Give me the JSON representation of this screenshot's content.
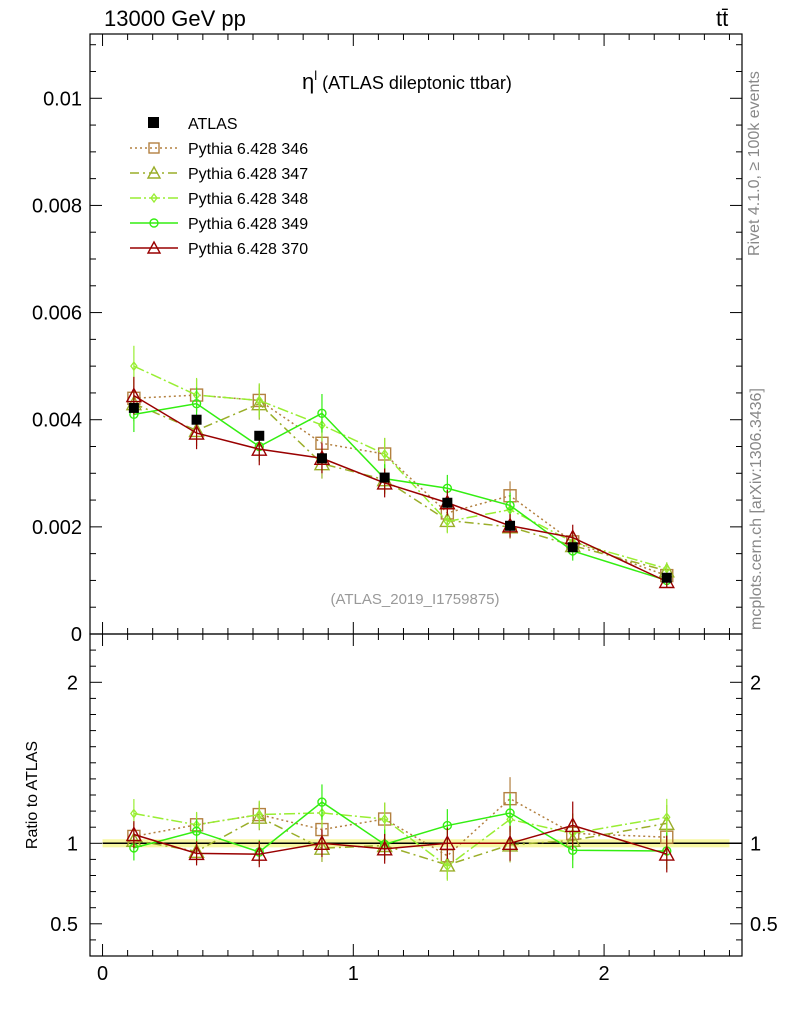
{
  "header": {
    "energy_label": "13000 GeV pp",
    "process_label": "tt̄"
  },
  "side": {
    "rivet_label": "Rivet 4.1.0, ≥ 100k events",
    "source_label": "mcplots.cern.ch [arXiv:1306.3436]"
  },
  "colors": {
    "atlas": "#000000",
    "p346": "#b38141",
    "p347": "#9aae29",
    "p348": "#99ee33",
    "p349": "#33ee11",
    "p370": "#990000",
    "band": "#f5f58a"
  },
  "chart_data": {
    "type": "scatter",
    "title": "η^l (ATLAS dileptonic ttbar)",
    "title_main": "η",
    "title_sup": "l",
    "title_rest": " (ATLAS dileptonic ttbar)",
    "analysis_id": "(ATLAS_2019_I1759875)",
    "xlim": [
      -0.05,
      2.55
    ],
    "upper": {
      "ylim": [
        0,
        0.0112
      ],
      "yticks": [
        0,
        0.002,
        0.004,
        0.006,
        0.008,
        0.01
      ],
      "ytick_labels": [
        "0",
        "0.002",
        "0.004",
        "0.006",
        "0.008",
        "0.01"
      ]
    },
    "lower": {
      "ylabel": "Ratio to ATLAS",
      "ylim": [
        0.3,
        2.3
      ],
      "yticks": [
        0.5,
        1,
        2
      ],
      "ytick_labels": [
        "0.5",
        "1",
        "2"
      ]
    },
    "xticks": [
      0,
      1,
      2
    ],
    "xtick_labels": [
      "0",
      "1",
      "2"
    ],
    "x": [
      0.125,
      0.375,
      0.625,
      0.875,
      1.125,
      1.375,
      1.625,
      1.875,
      2.25
    ],
    "data": {
      "name": "ATLAS",
      "values": [
        0.00422,
        0.004,
        0.0037,
        0.00328,
        0.00292,
        0.00245,
        0.00202,
        0.00162,
        0.00105
      ],
      "errors": [
        8e-05,
        8e-05,
        7e-05,
        7e-05,
        6e-05,
        6e-05,
        5e-05,
        5e-05,
        4e-05
      ]
    },
    "series": [
      {
        "name": "Pythia 6.428 346",
        "key": "p346",
        "marker": "square",
        "dash": "2,3",
        "values": [
          0.0044,
          0.00446,
          0.00436,
          0.00356,
          0.00336,
          0.00226,
          0.00258,
          0.00172,
          0.00109
        ],
        "errors": [
          0.00035,
          0.0003,
          0.0003,
          0.0003,
          0.0003,
          0.00025,
          0.00027,
          0.0002,
          0.00012
        ]
      },
      {
        "name": "Pythia 6.428 347",
        "key": "p347",
        "marker": "triangle",
        "dash": "9,4,2,4",
        "values": [
          0.0043,
          0.0038,
          0.0043,
          0.00318,
          0.00288,
          0.00212,
          0.002,
          0.00165,
          0.00118
        ],
        "errors": [
          0.00033,
          0.00029,
          0.0003,
          0.00028,
          0.00027,
          0.00022,
          0.00022,
          0.0002,
          0.00012
        ]
      },
      {
        "name": "Pythia 6.428 348",
        "key": "p348",
        "marker": "diamond",
        "dash": "11,3,2,3",
        "values": [
          0.005,
          0.00446,
          0.00436,
          0.0039,
          0.00336,
          0.0021,
          0.00232,
          0.00172,
          0.00122
        ],
        "errors": [
          0.00038,
          0.00032,
          0.00032,
          0.0003,
          0.0003,
          0.00022,
          0.00024,
          0.0002,
          0.00012
        ]
      },
      {
        "name": "Pythia 6.428 349",
        "key": "p349",
        "marker": "circle",
        "dash": "",
        "values": [
          0.0041,
          0.0043,
          0.0035,
          0.00412,
          0.0029,
          0.00272,
          0.0024,
          0.00155,
          0.001
        ],
        "errors": [
          0.00033,
          0.0003,
          0.00028,
          0.00036,
          0.00027,
          0.00025,
          0.00024,
          0.00018,
          0.00012
        ]
      },
      {
        "name": "Pythia 6.428 370",
        "key": "p370",
        "marker": "triangle",
        "dash": "",
        "values": [
          0.00445,
          0.00375,
          0.00345,
          0.00328,
          0.00282,
          0.00245,
          0.00202,
          0.0018,
          0.00098
        ],
        "errors": [
          0.00035,
          0.0003,
          0.0003,
          0.00028,
          0.00027,
          0.00024,
          0.00022,
          0.00024,
          0.00012
        ]
      }
    ]
  }
}
